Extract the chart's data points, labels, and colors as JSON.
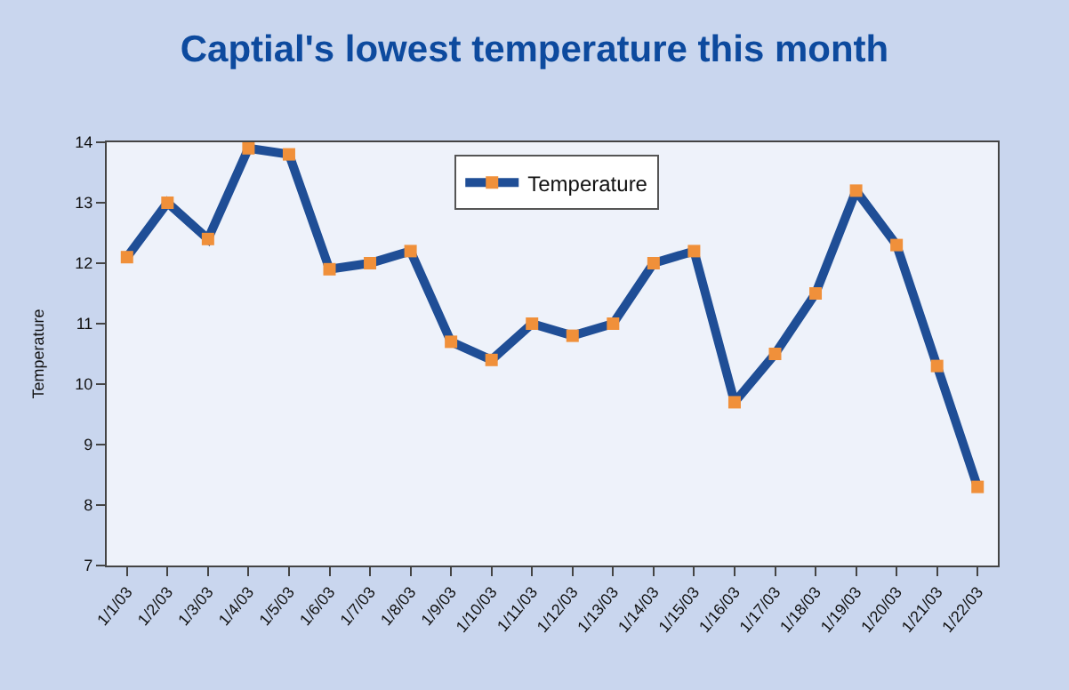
{
  "chart_data": {
    "type": "line",
    "title": "Captial's lowest temperature this month",
    "ylabel": "Temperature",
    "categories": [
      "1/1/03",
      "1/2/03",
      "1/3/03",
      "1/4/03",
      "1/5/03",
      "1/6/03",
      "1/7/03",
      "1/8/03",
      "1/9/03",
      "1/10/03",
      "1/11/03",
      "1/12/03",
      "1/13/03",
      "1/14/03",
      "1/15/03",
      "1/16/03",
      "1/17/03",
      "1/18/03",
      "1/19/03",
      "1/20/03",
      "1/21/03",
      "1/22/03"
    ],
    "series": [
      {
        "name": "Temperature",
        "color": "#1f4e96",
        "colors": [
          "#f0903a",
          "#f0903a",
          "#f0903a",
          "#f0903a",
          "#f0903a",
          "#f0903a",
          "#f0903a",
          "#f0903a",
          "#f0903a",
          "#f0903a",
          "#f0903a",
          "#f0903a",
          "#f0903a",
          "#f0903a",
          "#f0903a",
          "#f0903a",
          "#f0903a",
          "#f0903a",
          "#f0903a",
          "#f0903a",
          "#f0903a",
          "#f0903a"
        ],
        "values": [
          12.1,
          13.0,
          12.4,
          13.9,
          13.8,
          11.9,
          12.0,
          12.2,
          10.7,
          10.4,
          11.0,
          10.8,
          11.0,
          12.0,
          12.2,
          9.7,
          10.5,
          11.5,
          13.2,
          12.3,
          10.3,
          8.3
        ]
      }
    ],
    "ylim": [
      7,
      14
    ],
    "yticks": [
      7,
      8,
      9,
      10,
      11,
      12,
      13,
      14
    ],
    "grid": false,
    "legend": "top",
    "marker": "square",
    "line_style": "solid"
  }
}
